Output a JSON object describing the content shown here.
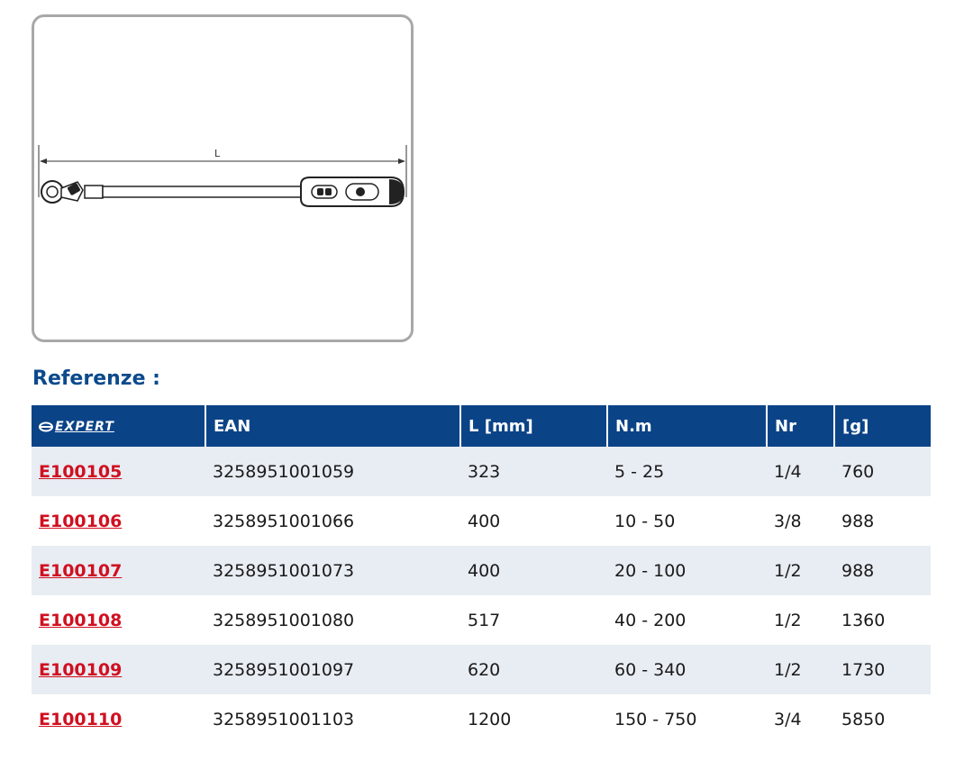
{
  "drawing": {
    "dimension_label": "L"
  },
  "section_title": "Referenze :",
  "table": {
    "brand_label": "EXPERT",
    "headers": [
      "EAN",
      "L [mm]",
      "N.m",
      "Nr",
      "[g]"
    ],
    "rows": [
      {
        "ref": "E100105",
        "ean": "3258951001059",
        "length": "323",
        "torque": "5 - 25",
        "drive": "1/4",
        "weight": "760"
      },
      {
        "ref": "E100106",
        "ean": "3258951001066",
        "length": "400",
        "torque": "10 - 50",
        "drive": "3/8",
        "weight": "988"
      },
      {
        "ref": "E100107",
        "ean": "3258951001073",
        "length": "400",
        "torque": "20 - 100",
        "drive": "1/2",
        "weight": "988"
      },
      {
        "ref": "E100108",
        "ean": "3258951001080",
        "length": "517",
        "torque": "40 - 200",
        "drive": "1/2",
        "weight": "1360"
      },
      {
        "ref": "E100109",
        "ean": "3258951001097",
        "length": "620",
        "torque": "60 - 340",
        "drive": "1/2",
        "weight": "1730"
      },
      {
        "ref": "E100110",
        "ean": "3258951001103",
        "length": "1200",
        "torque": "150 - 750",
        "drive": "3/4",
        "weight": "5850"
      }
    ]
  },
  "colors": {
    "header_bg": "#0b4387",
    "title": "#0b4a8c",
    "link": "#d01020",
    "stripe": "#e8ecf3"
  }
}
